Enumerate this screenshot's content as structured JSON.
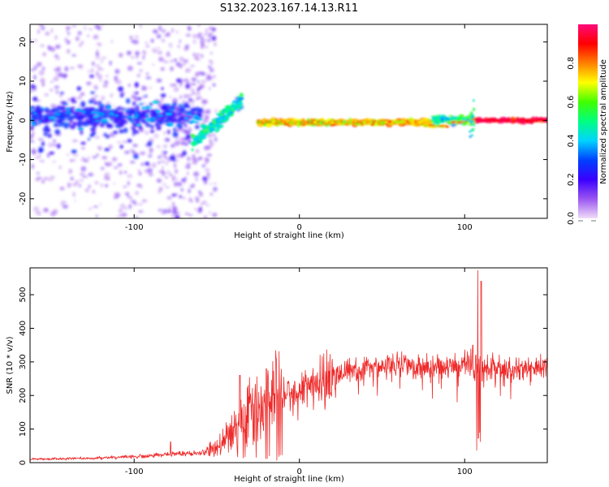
{
  "figure": {
    "title": "S132.2023.167.14.13.R11"
  },
  "chart_data": [
    {
      "type": "heatmap",
      "xlabel": "Height of straight line (km)",
      "ylabel": "Frequency (Hz)",
      "xlim": [
        -163,
        150
      ],
      "ylim": [
        -25,
        24.5
      ],
      "xticks": [
        -100,
        0,
        100
      ],
      "yticks": [
        -20,
        -10,
        0,
        10,
        20
      ],
      "xtick_labels": [
        "-100",
        "0",
        "100"
      ],
      "ytick_labels": [
        "-20",
        "-10",
        "0",
        "10",
        "20"
      ],
      "colorbar": {
        "label": "Normalized spectral amplitude",
        "range": [
          0,
          1
        ],
        "ticks": [
          0.0,
          0.2,
          0.4,
          0.6,
          0.8
        ],
        "tick_labels": [
          "0.0",
          "0.2",
          "0.4",
          "0.6",
          "0.8"
        ],
        "colormap": [
          "#f0dcf8",
          "#9a55f0",
          "#3a00ff",
          "#0040ff",
          "#00d4ff",
          "#00ff80",
          "#40ff00",
          "#ffff00",
          "#ff8000",
          "#ff0000",
          "#ff0a7a"
        ]
      },
      "features": [
        {
          "x_range": [
            -163,
            -60
          ],
          "frequency": 1,
          "spread_hz": 4,
          "amplitude": 0.25
        },
        {
          "x_range": [
            -65,
            -35
          ],
          "frequency_start": -6,
          "frequency_end": 5,
          "amplitude": 0.45
        },
        {
          "x_range": [
            -25,
            80
          ],
          "frequency": -0.5,
          "spread_hz": 1,
          "amplitude": 0.75
        },
        {
          "x_range": [
            80,
            105
          ],
          "frequency": 0,
          "spread_hz": 1.5,
          "amplitude": 0.5
        },
        {
          "x_range": [
            105,
            150
          ],
          "frequency": 0,
          "spread_hz": 0.7,
          "amplitude": 0.95
        }
      ]
    },
    {
      "type": "line",
      "xlabel": "Height of straight line (km)",
      "ylabel": "SNR (10 * v/v)",
      "xlim": [
        -163,
        150
      ],
      "ylim": [
        0,
        580
      ],
      "xticks": [
        -100,
        0,
        100
      ],
      "yticks": [
        0,
        100,
        200,
        300,
        400,
        500
      ],
      "xtick_labels": [
        "-100",
        "0",
        "100"
      ],
      "ytick_labels": [
        "0",
        "100",
        "200",
        "300",
        "400",
        "500"
      ],
      "series_color": "#ee2a2a",
      "envelope": [
        {
          "x": -163,
          "y": 10
        },
        {
          "x": -140,
          "y": 12
        },
        {
          "x": -120,
          "y": 14
        },
        {
          "x": -100,
          "y": 18
        },
        {
          "x": -80,
          "y": 25
        },
        {
          "x": -60,
          "y": 28
        },
        {
          "x": -50,
          "y": 40
        },
        {
          "x": -40,
          "y": 90
        },
        {
          "x": -30,
          "y": 150
        },
        {
          "x": -20,
          "y": 170
        },
        {
          "x": -10,
          "y": 200
        },
        {
          "x": 0,
          "y": 215
        },
        {
          "x": 10,
          "y": 240
        },
        {
          "x": 20,
          "y": 260
        },
        {
          "x": 30,
          "y": 275
        },
        {
          "x": 40,
          "y": 283
        },
        {
          "x": 50,
          "y": 290
        },
        {
          "x": 60,
          "y": 290
        },
        {
          "x": 70,
          "y": 290
        },
        {
          "x": 80,
          "y": 280
        },
        {
          "x": 90,
          "y": 285
        },
        {
          "x": 100,
          "y": 295
        },
        {
          "x": 110,
          "y": 285
        },
        {
          "x": 120,
          "y": 285
        },
        {
          "x": 130,
          "y": 282
        },
        {
          "x": 140,
          "y": 285
        },
        {
          "x": 150,
          "y": 288
        }
      ],
      "peaks": [
        {
          "x": -78,
          "y": 62
        },
        {
          "x": -36,
          "y": 260
        },
        {
          "x": -20,
          "y": 280
        },
        {
          "x": -14,
          "y": 310
        },
        {
          "x": 105,
          "y": 350
        },
        {
          "x": 108,
          "y": 572
        },
        {
          "x": 110,
          "y": 540
        }
      ]
    }
  ]
}
